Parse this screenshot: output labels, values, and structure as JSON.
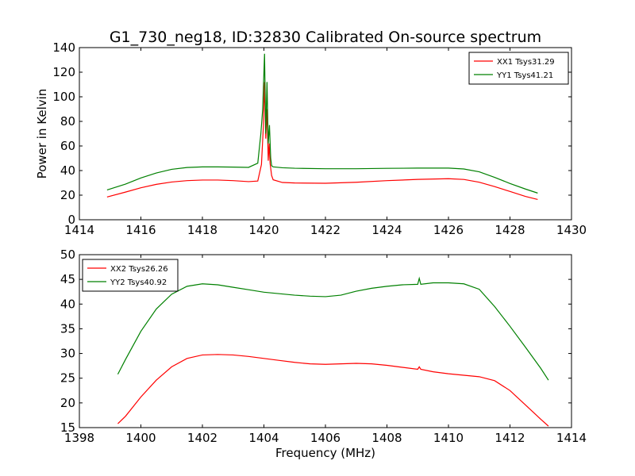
{
  "title": "G1_730_neg18, ID:32830 Calibrated On-source spectrum",
  "chart_data": [
    {
      "type": "line",
      "title": "G1_730_neg18, ID:32830 Calibrated On-source spectrum",
      "xlabel": "",
      "ylabel": "Power in Kelvin",
      "xlim": [
        1414,
        1430
      ],
      "ylim": [
        0,
        140
      ],
      "xticks": [
        "1414",
        "1416",
        "1418",
        "1420",
        "1422",
        "1424",
        "1426",
        "1428",
        "1430"
      ],
      "yticks": [
        "0",
        "20",
        "40",
        "60",
        "80",
        "100",
        "120",
        "140"
      ],
      "grid": false,
      "legend": "top-right",
      "series": [
        {
          "name": "XX1 Tsys31.29",
          "color": "#ff0000",
          "x": [
            1414.9,
            1415.5,
            1416.0,
            1416.5,
            1417.0,
            1417.5,
            1418.0,
            1418.5,
            1419.0,
            1419.5,
            1419.8,
            1419.92,
            1419.98,
            1420.02,
            1420.06,
            1420.1,
            1420.14,
            1420.17,
            1420.2,
            1420.25,
            1420.3,
            1420.6,
            1421.0,
            1422.0,
            1423.0,
            1424.0,
            1425.0,
            1426.0,
            1426.5,
            1427.0,
            1427.5,
            1428.0,
            1428.5,
            1428.9
          ],
          "y": [
            18.5,
            22.5,
            26.0,
            28.8,
            30.7,
            31.8,
            32.3,
            32.3,
            31.8,
            31.0,
            31.5,
            45,
            75,
            112,
            66,
            90,
            48,
            62,
            46,
            36,
            32.5,
            30.3,
            29.9,
            29.7,
            30.5,
            31.8,
            32.8,
            33.4,
            32.8,
            30.5,
            27.0,
            23.0,
            19.0,
            16.5
          ]
        },
        {
          "name": "YY1 Tsys41.21",
          "color": "#008000",
          "x": [
            1414.9,
            1415.5,
            1416.0,
            1416.5,
            1417.0,
            1417.5,
            1418.0,
            1418.5,
            1419.0,
            1419.5,
            1419.8,
            1419.9,
            1419.96,
            1420.02,
            1420.06,
            1420.1,
            1420.14,
            1420.18,
            1420.22,
            1420.25,
            1420.3,
            1420.6,
            1421.0,
            1422.0,
            1423.0,
            1424.0,
            1425.0,
            1426.0,
            1426.5,
            1427.0,
            1427.5,
            1428.0,
            1428.5,
            1428.9
          ],
          "y": [
            24.2,
            29.0,
            34.0,
            38.0,
            41.0,
            42.5,
            43.0,
            43.0,
            42.8,
            42.6,
            46,
            70,
            90,
            135,
            70,
            112,
            62,
            77,
            50,
            44,
            43.0,
            42.3,
            41.9,
            41.5,
            41.5,
            41.8,
            42.0,
            42.0,
            41.3,
            39.0,
            34.5,
            29.5,
            25.0,
            21.7
          ]
        }
      ]
    },
    {
      "type": "line",
      "title": "",
      "xlabel": "Frequency (MHz)",
      "ylabel": "",
      "xlim": [
        1398,
        1414
      ],
      "ylim": [
        15,
        50
      ],
      "xticks": [
        "1398",
        "1400",
        "1402",
        "1404",
        "1406",
        "1408",
        "1410",
        "1412",
        "1414"
      ],
      "yticks": [
        "15",
        "20",
        "25",
        "30",
        "35",
        "40",
        "45",
        "50"
      ],
      "grid": false,
      "legend": "top-left",
      "series": [
        {
          "name": "XX2 Tsys26.26",
          "color": "#ff0000",
          "x": [
            1399.25,
            1399.5,
            1400.0,
            1400.5,
            1401.0,
            1401.5,
            1402.0,
            1402.5,
            1403.0,
            1403.5,
            1404.0,
            1404.5,
            1405.0,
            1405.5,
            1406.0,
            1406.5,
            1407.0,
            1407.5,
            1408.0,
            1408.5,
            1409.0,
            1409.05,
            1409.1,
            1409.5,
            1410.0,
            1410.5,
            1411.0,
            1411.5,
            1412.0,
            1412.5,
            1413.0,
            1413.25
          ],
          "y": [
            15.8,
            17.3,
            21.2,
            24.6,
            27.3,
            29.0,
            29.7,
            29.8,
            29.7,
            29.4,
            29.0,
            28.6,
            28.2,
            27.9,
            27.8,
            27.9,
            28.0,
            27.9,
            27.6,
            27.2,
            26.8,
            27.3,
            26.8,
            26.3,
            25.9,
            25.6,
            25.3,
            24.5,
            22.5,
            19.6,
            16.7,
            15.3
          ]
        },
        {
          "name": "YY2 Tsys40.92",
          "color": "#008000",
          "x": [
            1399.25,
            1399.5,
            1400.0,
            1400.5,
            1401.0,
            1401.5,
            1402.0,
            1402.5,
            1403.0,
            1403.5,
            1404.0,
            1404.5,
            1405.0,
            1405.5,
            1406.0,
            1406.5,
            1407.0,
            1407.5,
            1408.0,
            1408.5,
            1409.0,
            1409.05,
            1409.1,
            1409.5,
            1410.0,
            1410.5,
            1411.0,
            1411.5,
            1412.0,
            1412.5,
            1413.0,
            1413.25
          ],
          "y": [
            25.8,
            28.8,
            34.5,
            39.0,
            42.0,
            43.6,
            44.1,
            43.9,
            43.4,
            42.9,
            42.4,
            42.1,
            41.8,
            41.6,
            41.5,
            41.8,
            42.6,
            43.2,
            43.6,
            43.9,
            44.0,
            45.2,
            44.0,
            44.3,
            44.3,
            44.1,
            43.0,
            39.5,
            35.5,
            31.3,
            27.0,
            24.6
          ]
        }
      ]
    }
  ]
}
